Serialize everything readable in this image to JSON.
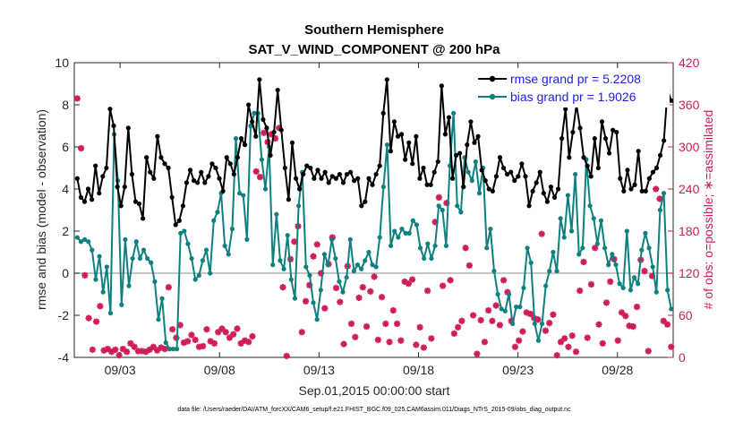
{
  "chart_data": {
    "type": "line",
    "title": "Southern Hemisphere",
    "subtitle": "SAT_V_WIND_COMPONENT @ 200 hPa",
    "xlabel": "Sep.01,2015 00:00:00 start",
    "ylabel": "rmse and bias (model - observation)",
    "ylabel_right": "# of obs: o=possible; ∗=assimilated",
    "footer": "data file: /Users/raeder/DAI/ATM_forcXX/CAM6_setup/f.e21.FHIST_BGC.f09_025.CAM6assim.011/Diags_NTrS_2015-09/obs_diag_output.nc",
    "xlim": [
      0.7,
      30.8
    ],
    "ylim": [
      -4,
      10
    ],
    "ylim_right": [
      0,
      420
    ],
    "x_ticks": [
      3,
      8,
      13,
      18,
      23,
      28
    ],
    "x_tick_labels": [
      "09/03",
      "09/08",
      "09/13",
      "09/18",
      "09/23",
      "09/28"
    ],
    "y_ticks": [
      -4,
      -2,
      0,
      2,
      4,
      6,
      8,
      10
    ],
    "y_tick_labels": [
      "-4",
      "-2",
      "0",
      "2",
      "4",
      "6",
      "8",
      "10"
    ],
    "y_ticks_right": [
      0,
      60,
      120,
      180,
      240,
      300,
      360,
      420
    ],
    "y_tick_labels_right": [
      "0",
      "60",
      "120",
      "180",
      "240",
      "300",
      "360",
      "420"
    ],
    "colors": {
      "rmse": "#000000",
      "bias": "#0f8080",
      "obs": "#d01c5b",
      "zero_line": "#b4b4b4",
      "legend_text": "#1f1fe0"
    },
    "series": [
      {
        "name": "rmse grand pr = 5.2208",
        "values": [
          4.5,
          3.6,
          3.4,
          4.0,
          3.5,
          5.1,
          3.8,
          4.6,
          5.0,
          7.8,
          7.0,
          4.1,
          3.2,
          4.1,
          6.9,
          4.7,
          3.4,
          3.3,
          2.6,
          5.5,
          4.8,
          4.5,
          6.5,
          5.5,
          5.2,
          5.0,
          3.6,
          2.3,
          2.5,
          3.2,
          4.3,
          4.9,
          4.4,
          4.3,
          4.8,
          4.3,
          4.6,
          5.2,
          5.0,
          4.5,
          3.9,
          5.5,
          5.2,
          4.7,
          5.5,
          6.4,
          6.1,
          8.0,
          7.2,
          6.5,
          9.2,
          7.3,
          6.9,
          5.6,
          6.7,
          8.7,
          6.8,
          5.0,
          3.5,
          6.2,
          4.5,
          4.0,
          4.7,
          5.1,
          5.0,
          4.5,
          4.9,
          4.5,
          4.8,
          4.3,
          4.6,
          4.5,
          4.7,
          4.3,
          4.7,
          4.8,
          4.4,
          4.5,
          3.2,
          3.4,
          4.5,
          4.2,
          4.7,
          5.1,
          7.6,
          9.2,
          5.8,
          7.2,
          6.5,
          6.6,
          5.4,
          6.2,
          5.2,
          6.5,
          4.5,
          5.0,
          4.2,
          4.2,
          4.8,
          5.3,
          8.9,
          6.6,
          7.4,
          4.5,
          5.6,
          5.7,
          4.1,
          6.1,
          7.2,
          6.2,
          6.5,
          4.9,
          4.4,
          4.0,
          3.9,
          4.6,
          5.5,
          5.0,
          4.7,
          4.8,
          4.4,
          4.6,
          5.2,
          4.6,
          3.2,
          3.9,
          4.3,
          4.8,
          3.8,
          3.4,
          4.1,
          3.6,
          4.0,
          6.4,
          7.8,
          5.5,
          6.7,
          8.0,
          6.9,
          5.5,
          5.1,
          4.6,
          6.4,
          5.0,
          7.2,
          6.4,
          5.7,
          6.8,
          6.7,
          4.5,
          3.9,
          4.9,
          4.0,
          4.2,
          5.8,
          3.9,
          3.9,
          4.5,
          4.8,
          5.0,
          5.6,
          6.3,
          8.7,
          8.2
        ],
        "x_start": 0.85,
        "x_end": 30.7
      },
      {
        "name": "bias grand pr = 1.9026",
        "values": [
          1.7,
          1.5,
          1.6,
          1.5,
          1.1,
          -0.3,
          0.8,
          -0.9,
          0.3,
          -1.9,
          6.6,
          4.4,
          -1.5,
          1.6,
          -0.6,
          0.7,
          1.5,
          0.7,
          1.1,
          0.7,
          0.5,
          -0.4,
          -2.2,
          -1.2,
          -3.3,
          -3.6,
          -3.6,
          -3.6,
          1.9,
          2.0,
          1.4,
          0.7,
          -0.3,
          -0.1,
          0.6,
          1.1,
          0.0,
          2.5,
          2.9,
          3.8,
          1.3,
          0.9,
          2.1,
          6.4,
          3.8,
          3.7,
          1.6,
          7.0,
          7.6,
          7.6,
          5.4,
          4.0,
          6.0,
          0.4,
          2.8,
          0.6,
          0.2,
          1.8,
          -0.3,
          -1.2,
          3.2,
          4.8,
          0.3,
          -0.1,
          -1.4,
          -2.2,
          -0.8,
          0.9,
          0.4,
          1.6,
          0.7,
          -0.4,
          -0.9,
          -0.2,
          1.6,
          0.1,
          0.4,
          0.2,
          0.6,
          1.0,
          0.4,
          0.3,
          1.7,
          4.1,
          6.1,
          1.3,
          2.0,
          1.7,
          2.1,
          1.9,
          1.9,
          2.5,
          2.3,
          1.2,
          0.7,
          1.4,
          0.7,
          1.3,
          3.2,
          3.0,
          1.3,
          5.1,
          7.6,
          3.2,
          2.9,
          5.5,
          4.8,
          4.4,
          5.3,
          3.8,
          5.0,
          1.2,
          2.1,
          0.1,
          -1.0,
          -1.7,
          -1.8,
          -1.0,
          -2.4,
          -1.6,
          -1.6,
          -0.7,
          1.2,
          0.5,
          -2.4,
          -3.2,
          -2.4,
          -0.6,
          0.1,
          1.0,
          0.1,
          2.6,
          1.7,
          3.7,
          2.0,
          4.7,
          0.9,
          1.2,
          5.4,
          3.2,
          2.6,
          1.4,
          2.5,
          1.2,
          0.4,
          0.9,
          0.4,
          -0.5,
          -0.7,
          2.0,
          -0.8,
          -0.2,
          -0.5,
          1.1,
          1.9,
          1.2,
          0.3,
          -0.9,
          3.0,
          3.8,
          -0.8,
          -1.7
        ],
        "x_start": 0.85,
        "x_end": 30.7
      }
    ],
    "obs_possible_note": "no open-circle (possible) markers are distinguishable; markers shown are assimilated counts",
    "obs_assimilated": {
      "name": "# of obs assimilated",
      "values": [
        369,
        298,
        117,
        56,
        11,
        51,
        73,
        10,
        12,
        8,
        11,
        3,
        12,
        8,
        20,
        15,
        9,
        9,
        8,
        11,
        15,
        10,
        14,
        12,
        100,
        40,
        28,
        46,
        21,
        23,
        32,
        25,
        15,
        16,
        40,
        23,
        20,
        36,
        41,
        36,
        28,
        33,
        41,
        20,
        24,
        22,
        30,
        265,
        257,
        320,
        307,
        318,
        312,
        327,
        100,
        2,
        140,
        165,
        187,
        36,
        80,
        103,
        144,
        161,
        120,
        70,
        133,
        171,
        99,
        79,
        19,
        130,
        48,
        29,
        85,
        100,
        44,
        94,
        115,
        25,
        86,
        48,
        22,
        67,
        48,
        24,
        108,
        105,
        111,
        18,
        43,
        14,
        95,
        27,
        193,
        228,
        102,
        220,
        110,
        34,
        43,
        52,
        156,
        131,
        60,
        5,
        53,
        22,
        67,
        52,
        74,
        46,
        110,
        93,
        52,
        15,
        24,
        37,
        64,
        62,
        56,
        54,
        176,
        38,
        49,
        61,
        3,
        22,
        27,
        15,
        31,
        8,
        95,
        136,
        28,
        104,
        156,
        47,
        20,
        78,
        108,
        140,
        24,
        64,
        59,
        45,
        44,
        72,
        139,
        123,
        9,
        116,
        240,
        226,
        52,
        47,
        15
      ],
      "x_start": 0.85,
      "x_end": 30.7
    }
  }
}
